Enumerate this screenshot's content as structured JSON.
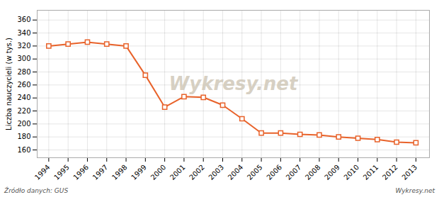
{
  "chart_data": {
    "type": "line",
    "x": [
      1994,
      1995,
      1996,
      1997,
      1998,
      1999,
      2000,
      2001,
      2002,
      2003,
      2004,
      2005,
      2006,
      2007,
      2008,
      2009,
      2010,
      2011,
      2012,
      2013
    ],
    "values": [
      320,
      323,
      326,
      323,
      320,
      275,
      226,
      242,
      241,
      229,
      208,
      186,
      186,
      184,
      183,
      180,
      178,
      176,
      172,
      171
    ],
    "color": "#e8622a",
    "marker": "square",
    "ylabel": "Liczba nauczycieli (w tys.)",
    "xlim": [
      1993.4,
      2013.7
    ],
    "xticks": [
      1994,
      1995,
      1996,
      1997,
      1998,
      1999,
      2000,
      2001,
      2002,
      2003,
      2004,
      2005,
      2006,
      2007,
      2008,
      2009,
      2010,
      2011,
      2012,
      2013
    ],
    "ylim": [
      148,
      375
    ],
    "yticks": [
      160,
      180,
      200,
      220,
      240,
      260,
      280,
      300,
      320,
      340,
      360
    ],
    "grid": true,
    "annotations": [
      "Wykresy.net",
      "Źródło danych:  GUS",
      "Wykresy.net"
    ]
  }
}
